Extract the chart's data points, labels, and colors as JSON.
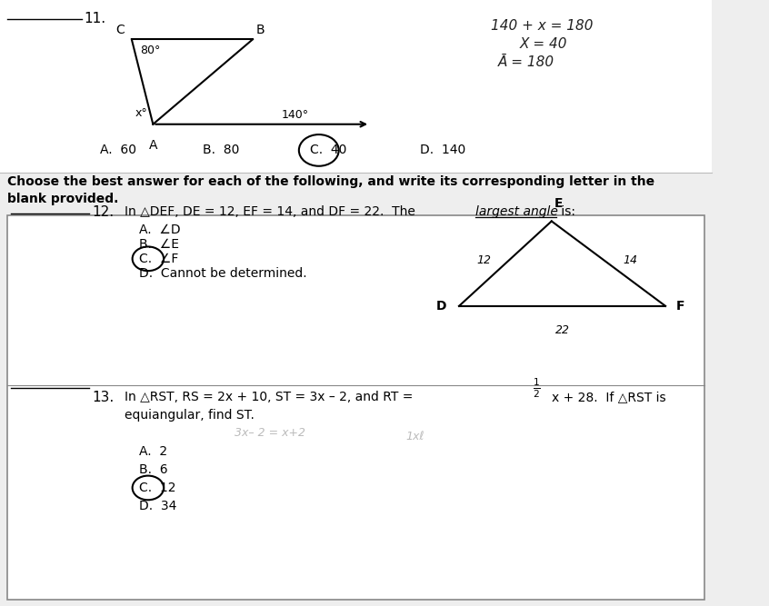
{
  "bg_color": "#eeeeee",
  "white": "#ffffff",
  "black": "#000000",
  "q11_number": "11.",
  "q11_angle_80": "80°",
  "q11_angle_x": "x°",
  "q11_angle_140": "140°",
  "q11_answer_choices": [
    "A.  60",
    "B.  80",
    "C.  40",
    "D.  140"
  ],
  "q11_work_line1": "140 + x = 180",
  "q11_work_line2": "X = 40",
  "q11_work_line3": "Ā = 180",
  "q12_number": "12.",
  "q12_text_part1": "In △DEF, DE = 12, EF = 14, and DF = 22.  The ",
  "q12_underline_text": "largest angle",
  "q12_text_part2": " is:",
  "q12_choices": [
    "A.  ∠D",
    "B.  ∠E",
    "C.  ∠F",
    "D.  Cannot be determined."
  ],
  "q12_circled_idx": 2,
  "q13_number": "13.",
  "q13_text_part1": "In △RST, RS = 2x + 10, ST = 3x – 2, and RT = ",
  "q13_text_part2": "x + 28.  If △RST is",
  "q13_text_part3": "equiangular, find ST.",
  "q13_choices": [
    "A.  2",
    "B.  6",
    "C.  12",
    "D.  34"
  ],
  "q13_circled_idx": 2,
  "instruction": "Choose the best answer for each of the following, and write its corresponding letter in the\nblank provided."
}
